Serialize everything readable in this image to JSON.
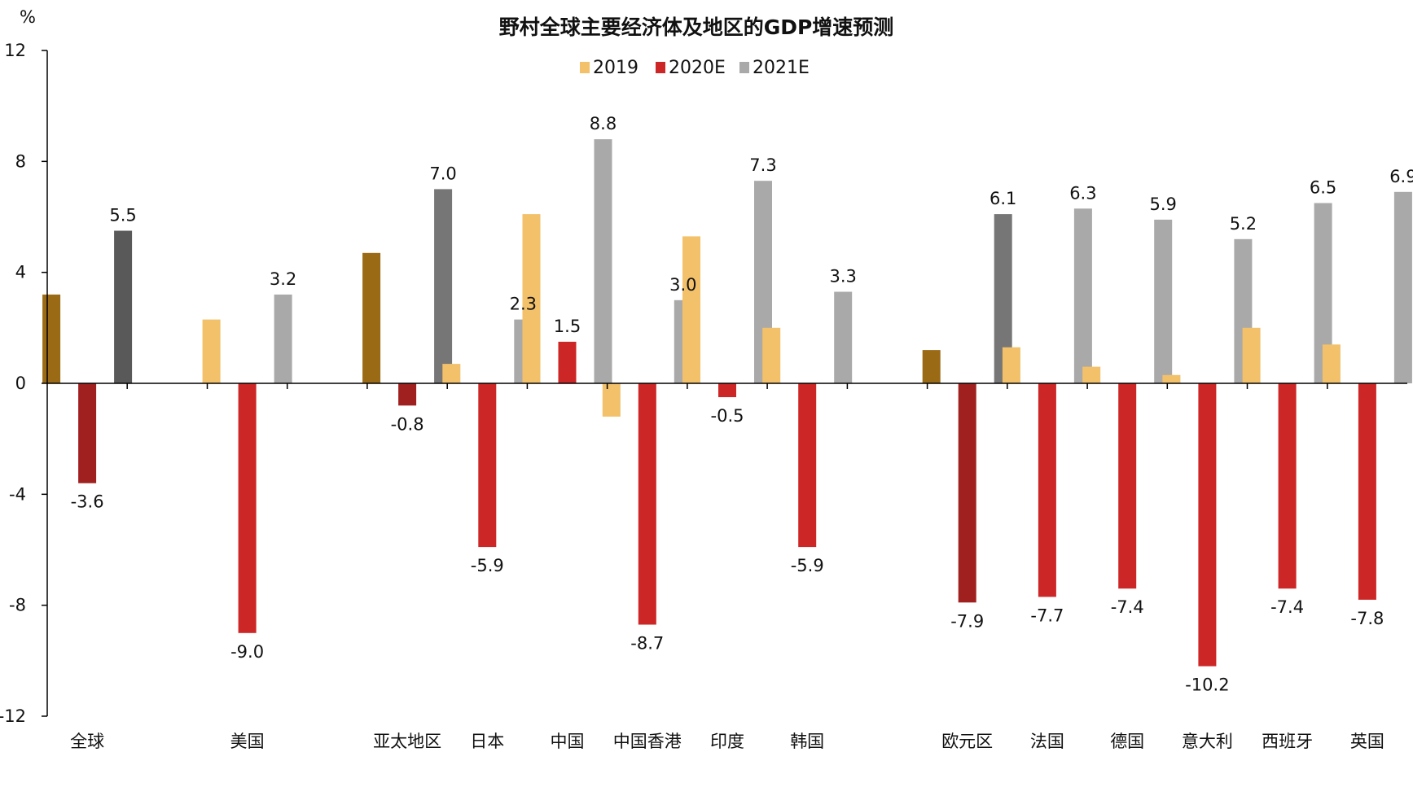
{
  "chart_data": {
    "type": "bar",
    "title": "野村全球主要经济体及地区的GDP增速预测",
    "y_unit": "%",
    "ylim": [
      -12,
      12
    ],
    "yticks": [
      12,
      8,
      4,
      0,
      -4,
      -8,
      -12
    ],
    "ytick_labels": [
      "12",
      "8",
      "4",
      "0",
      "-4",
      "-8",
      "-12"
    ],
    "grid": false,
    "legend_position": "top-center",
    "legend": [
      {
        "name": "2019",
        "color": "#F2C16A"
      },
      {
        "name": "2020E",
        "color": "#CD2626"
      },
      {
        "name": "2021E",
        "color": "#A9A9A9"
      }
    ],
    "series_names": [
      "2019",
      "2020E",
      "2021E"
    ],
    "categories": [
      "全球",
      "",
      "美国",
      "",
      "亚太地区",
      "日本",
      "中国",
      "中国香港",
      "印度",
      "韩国",
      "",
      "欧元区",
      "法国",
      "德国",
      "意大利",
      "西班牙",
      "英国"
    ],
    "groups": [
      {
        "category": "全球",
        "values": [
          3.2,
          -3.6,
          5.5
        ],
        "colors": [
          "#9B6A15",
          "#A02020",
          "#595959"
        ],
        "labels": [
          "",
          "-3.6",
          "5.5"
        ]
      },
      {
        "category": "",
        "values": [
          null,
          null,
          null
        ],
        "colors": [
          "#F2C16A",
          "#CD2626",
          "#A9A9A9"
        ],
        "labels": [
          "",
          "",
          ""
        ]
      },
      {
        "category": "美国",
        "values": [
          2.3,
          -9.0,
          3.2
        ],
        "colors": [
          "#F2C16A",
          "#CD2626",
          "#A9A9A9"
        ],
        "labels": [
          "",
          "-9.0",
          "3.2"
        ]
      },
      {
        "category": "",
        "values": [
          null,
          null,
          null
        ],
        "colors": [
          "#F2C16A",
          "#CD2626",
          "#A9A9A9"
        ],
        "labels": [
          "",
          "",
          ""
        ]
      },
      {
        "category": "亚太地区",
        "values": [
          4.7,
          -0.8,
          7.0
        ],
        "colors": [
          "#9B6A15",
          "#A02020",
          "#767676"
        ],
        "labels": [
          "",
          "-0.8",
          "7.0"
        ]
      },
      {
        "category": "日本",
        "values": [
          0.7,
          -5.9,
          2.3
        ],
        "colors": [
          "#F2C16A",
          "#CD2626",
          "#A9A9A9"
        ],
        "labels": [
          "",
          "-5.9",
          "2.3"
        ]
      },
      {
        "category": "中国",
        "values": [
          6.1,
          1.5,
          8.8
        ],
        "colors": [
          "#F2C16A",
          "#CD2626",
          "#A9A9A9"
        ],
        "labels": [
          "",
          "1.5",
          "8.8"
        ]
      },
      {
        "category": "中国香港",
        "values": [
          -1.2,
          -8.7,
          3.0
        ],
        "colors": [
          "#F2C16A",
          "#CD2626",
          "#A9A9A9"
        ],
        "labels": [
          "",
          "-8.7",
          "3.0"
        ]
      },
      {
        "category": "印度",
        "values": [
          5.3,
          -0.5,
          7.3
        ],
        "colors": [
          "#F2C16A",
          "#CD2626",
          "#A9A9A9"
        ],
        "labels": [
          "",
          "-0.5",
          "7.3"
        ]
      },
      {
        "category": "韩国",
        "values": [
          2.0,
          -5.9,
          3.3
        ],
        "colors": [
          "#F2C16A",
          "#CD2626",
          "#A9A9A9"
        ],
        "labels": [
          "",
          "-5.9",
          "3.3"
        ]
      },
      {
        "category": "",
        "values": [
          null,
          null,
          null
        ],
        "colors": [
          "#F2C16A",
          "#CD2626",
          "#A9A9A9"
        ],
        "labels": [
          "",
          "",
          ""
        ]
      },
      {
        "category": "欧元区",
        "values": [
          1.2,
          -7.9,
          6.1
        ],
        "colors": [
          "#9B6A15",
          "#A02020",
          "#767676"
        ],
        "labels": [
          "",
          "-7.9",
          "6.1"
        ]
      },
      {
        "category": "法国",
        "values": [
          1.3,
          -7.7,
          6.3
        ],
        "colors": [
          "#F2C16A",
          "#CD2626",
          "#A9A9A9"
        ],
        "labels": [
          "",
          "-7.7",
          "6.3"
        ]
      },
      {
        "category": "德国",
        "values": [
          0.6,
          -7.4,
          5.9
        ],
        "colors": [
          "#F2C16A",
          "#CD2626",
          "#A9A9A9"
        ],
        "labels": [
          "",
          "-7.4",
          "5.9"
        ]
      },
      {
        "category": "意大利",
        "values": [
          0.3,
          -10.2,
          5.2
        ],
        "colors": [
          "#F2C16A",
          "#CD2626",
          "#A9A9A9"
        ],
        "labels": [
          "",
          "-10.2",
          "5.2"
        ]
      },
      {
        "category": "西班牙",
        "values": [
          2.0,
          -7.4,
          6.5
        ],
        "colors": [
          "#F2C16A",
          "#CD2626",
          "#A9A9A9"
        ],
        "labels": [
          "",
          "-7.4",
          "6.5"
        ]
      },
      {
        "category": "英国",
        "values": [
          1.4,
          -7.8,
          6.9
        ],
        "colors": [
          "#F2C16A",
          "#CD2626",
          "#A9A9A9"
        ],
        "labels": [
          "",
          "-7.8",
          "6.9"
        ]
      }
    ]
  }
}
